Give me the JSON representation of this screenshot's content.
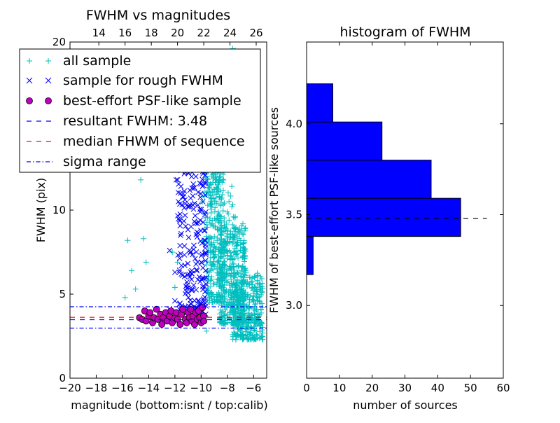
{
  "chart_data": [
    {
      "type": "scatter",
      "title": "FWHM vs magnitudes",
      "xlabel": "magnitude (bottom:isnt / top:calib)",
      "ylabel": "FWHM (pix)",
      "xlim": [
        -20,
        -5
      ],
      "ylim": [
        0,
        20
      ],
      "x_ticks": [
        -20,
        -18,
        -16,
        -14,
        -12,
        -10,
        -8,
        -6
      ],
      "x_tick_labels": [
        "−20",
        "−18",
        "−16",
        "−14",
        "−12",
        "−10",
        "−8",
        "−6"
      ],
      "y_ticks": [
        0,
        5,
        10,
        20
      ],
      "y_tick_labels": [
        "0",
        "5",
        "10",
        "20"
      ],
      "top_axis": {
        "ticks": [
          14,
          16,
          18,
          20,
          22,
          24,
          26
        ],
        "tick_labels": [
          "14",
          "16",
          "18",
          "20",
          "22",
          "24",
          "26"
        ],
        "offset": 31.8
      },
      "series": [
        {
          "name": "all sample",
          "marker": "+",
          "color": "#00bfbf",
          "points": [
            [
              -15.6,
              8.2
            ],
            [
              -15.3,
              6.4
            ],
            [
              -15.0,
              5.3
            ],
            [
              -15.8,
              4.8
            ],
            [
              -14.6,
              11.8
            ],
            [
              -14.4,
              8.3
            ],
            [
              -14.2,
              6.9
            ],
            [
              -12.2,
              7.5
            ],
            [
              -11.8,
              6.9
            ],
            [
              -12.0,
              5.4
            ],
            [
              -10.4,
              12.9
            ],
            [
              -9.6,
              12.5
            ],
            [
              -7.6,
              19.6
            ],
            [
              -7.4,
              19.5
            ],
            [
              -8.3,
              17.0
            ],
            [
              -7.0,
              18.0
            ],
            [
              -7.9,
              14.5
            ],
            [
              -8.5,
              12.2
            ],
            [
              -6.9,
              13.1
            ],
            [
              -7.4,
              9.6
            ],
            [
              -7.0,
              7.6
            ],
            [
              -6.6,
              6.4
            ],
            [
              -6.3,
              5.6
            ],
            [
              -6.0,
              4.9
            ],
            [
              -5.8,
              4.0
            ],
            [
              -5.5,
              3.1
            ],
            [
              -5.3,
              2.3
            ],
            [
              -9.6,
              2.8
            ],
            [
              -7.3,
              2.5
            ]
          ],
          "cluster": [
            {
              "x": [
                -9.6,
                -8.2
              ],
              "y": [
                4.5,
                12.5
              ],
              "n": 260
            },
            {
              "x": [
                -8.6,
                -6.6
              ],
              "y": [
                3.2,
                9.2
              ],
              "n": 420
            },
            {
              "x": [
                -7.6,
                -5.3
              ],
              "y": [
                2.3,
                6.3
              ],
              "n": 320
            },
            {
              "x": [
                -9.9,
                -7.3
              ],
              "y": [
                8.0,
                14.8
              ],
              "n": 120
            }
          ]
        },
        {
          "name": "sample for rough FWHM",
          "marker": "x",
          "color": "#0000ff",
          "points": [
            [
              -11.8,
              11.8
            ],
            [
              -11.9,
              11.8
            ],
            [
              -10.4,
              12.0
            ],
            [
              -10.1,
              11.6
            ],
            [
              -11.4,
              10.8
            ],
            [
              -10.9,
              10.2
            ],
            [
              -12.4,
              7.6
            ],
            [
              -12.0,
              6.3
            ],
            [
              -11.5,
              6.7
            ],
            [
              -12.0,
              4.6
            ],
            [
              -12.4,
              4.1
            ]
          ],
          "cluster": [
            {
              "x": [
                -11.8,
                -9.6
              ],
              "y": [
                3.8,
                12.6
              ],
              "n": 200
            }
          ]
        },
        {
          "name": "best-effort PSF-like sample",
          "marker": "o",
          "color": "#bf00bf",
          "points": [
            [
              -14.7,
              3.6
            ],
            [
              -14.5,
              3.5
            ],
            [
              -14.3,
              4.0
            ],
            [
              -14.2,
              3.4
            ],
            [
              -14.0,
              3.7
            ],
            [
              -13.9,
              3.9
            ],
            [
              -13.7,
              3.3
            ],
            [
              -13.6,
              3.6
            ],
            [
              -13.4,
              4.1
            ],
            [
              -13.3,
              3.5
            ],
            [
              -13.1,
              3.8
            ],
            [
              -13.0,
              3.2
            ],
            [
              -12.9,
              3.6
            ],
            [
              -12.7,
              3.9
            ],
            [
              -12.6,
              3.4
            ],
            [
              -12.4,
              3.7
            ],
            [
              -12.3,
              4.0
            ],
            [
              -12.2,
              3.3
            ],
            [
              -12.0,
              3.6
            ],
            [
              -11.9,
              3.9
            ],
            [
              -11.8,
              3.5
            ],
            [
              -11.6,
              3.2
            ],
            [
              -11.5,
              3.8
            ],
            [
              -11.4,
              4.1
            ],
            [
              -11.2,
              3.5
            ],
            [
              -11.1,
              3.3
            ],
            [
              -11.0,
              3.9
            ],
            [
              -10.9,
              3.6
            ],
            [
              -10.8,
              4.1
            ],
            [
              -10.7,
              3.4
            ],
            [
              -10.6,
              3.7
            ],
            [
              -10.5,
              3.2
            ],
            [
              -10.4,
              3.9
            ],
            [
              -10.3,
              3.5
            ],
            [
              -10.2,
              4.0
            ],
            [
              -10.1,
              3.6
            ],
            [
              -10.0,
              3.3
            ],
            [
              -9.9,
              4.2
            ],
            [
              -9.8,
              3.7
            ],
            [
              -9.8,
              3.4
            ]
          ]
        }
      ],
      "lines": [
        {
          "name": "resultant FWHM: 3.48",
          "y": 3.48,
          "color": "#0000ff",
          "style": "dashed"
        },
        {
          "name": "median FHWM of sequence",
          "y": 3.62,
          "color": "#ff0000",
          "style": "dashed"
        },
        {
          "name": "sigma range",
          "y": [
            2.98,
            4.25
          ],
          "color": "#0000ff",
          "style": "dashdot"
        }
      ],
      "legend": {
        "placement": "upper-left",
        "entries": [
          "all sample",
          "sample for rough FWHM",
          "best-effort PSF-like sample",
          "resultant FWHM: 3.48",
          "median FHWM of sequence",
          "sigma range"
        ]
      },
      "grid": false
    },
    {
      "type": "bar",
      "orientation": "horizontal",
      "title": "histogram of FWHM",
      "xlabel": "number of sources",
      "ylabel": "FWHM of best-effort PSF-like sources",
      "xlim": [
        0,
        60
      ],
      "ylim": [
        2.6,
        4.45
      ],
      "x_ticks": [
        0,
        10,
        20,
        30,
        40,
        50,
        60
      ],
      "x_tick_labels": [
        "0",
        "10",
        "20",
        "30",
        "40",
        "50",
        "60"
      ],
      "y_ticks": [
        3.0,
        3.5,
        4.0
      ],
      "y_tick_labels": [
        "3.0",
        "3.5",
        "4.0"
      ],
      "bins": [
        {
          "from": 3.17,
          "to": 3.38,
          "count": 2
        },
        {
          "from": 3.38,
          "to": 3.59,
          "count": 47
        },
        {
          "from": 3.59,
          "to": 3.8,
          "count": 38
        },
        {
          "from": 3.8,
          "to": 4.01,
          "count": 23
        },
        {
          "from": 4.01,
          "to": 4.22,
          "count": 8
        }
      ],
      "bar_color": "#0000ff",
      "reference_line": {
        "y": 3.48,
        "x_range": [
          0,
          55
        ],
        "color": "#000000",
        "style": "dashed"
      },
      "grid": false
    }
  ]
}
